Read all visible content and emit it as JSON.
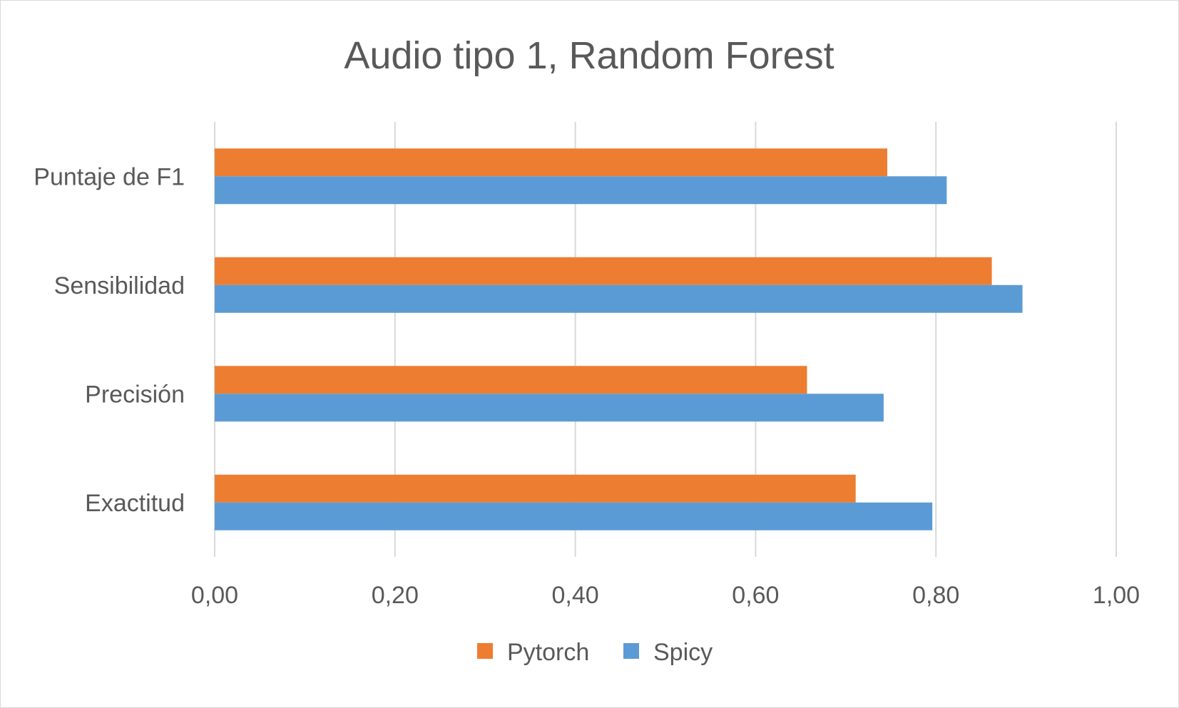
{
  "chart_data": {
    "type": "bar",
    "orientation": "horizontal",
    "title": "Audio tipo 1, Random Forest",
    "categories": [
      "Puntaje de F1",
      "Sensibilidad",
      "Precisión",
      "Exactitud"
    ],
    "series": [
      {
        "name": "Pytorch",
        "color": "#ED7D31",
        "values": [
          0.746,
          0.862,
          0.657,
          0.711
        ]
      },
      {
        "name": "Spicy",
        "color": "#5B9BD5",
        "values": [
          0.812,
          0.896,
          0.742,
          0.796
        ]
      }
    ],
    "xlim": [
      0,
      1
    ],
    "ticks": [
      0,
      0.2,
      0.4,
      0.6,
      0.8,
      1.0
    ],
    "tick_labels": [
      "0,00",
      "0,20",
      "0,40",
      "0,60",
      "0,80",
      "1,00"
    ],
    "grid": true,
    "gridline_color": "#d9d9d9",
    "legend_position": "bottom",
    "xlabel": "",
    "ylabel": ""
  }
}
